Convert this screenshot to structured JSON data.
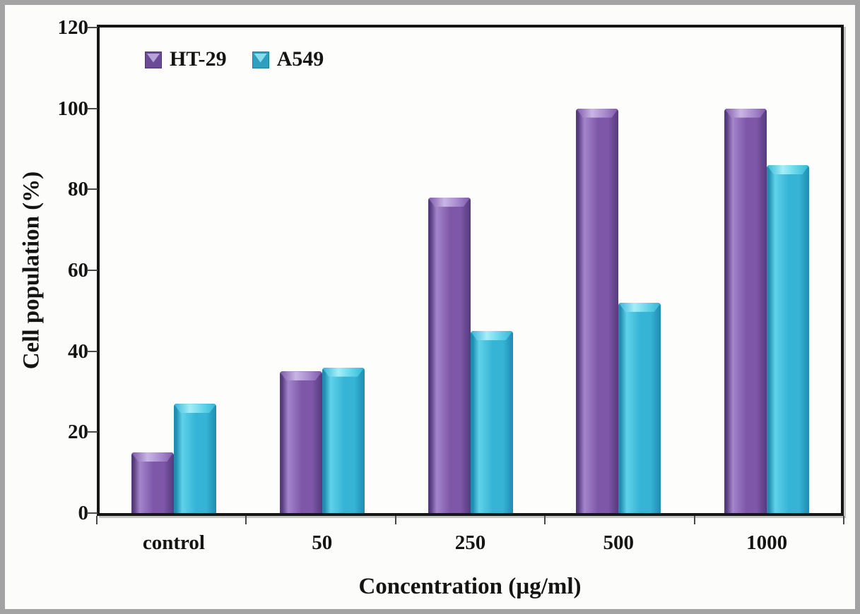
{
  "figure": {
    "background": "#fcfcfa",
    "frame_color": "#a3a3a3",
    "plot_border_color": "#161616"
  },
  "chart_data": {
    "type": "bar",
    "categories": [
      "control",
      "50",
      "250",
      "500",
      "1000"
    ],
    "series": [
      {
        "name": "HT-29",
        "color": "#7e57a8",
        "color_dark": "#553a7e",
        "color_light": "#a385cb",
        "color_highlight": "#c9b6e4",
        "values": [
          15,
          35,
          78,
          100,
          100
        ]
      },
      {
        "name": "A549",
        "color": "#35b4d6",
        "color_dark": "#1f8cb0",
        "color_light": "#5fd2e8",
        "color_highlight": "#a5eef8",
        "values": [
          27,
          36,
          45,
          52,
          86
        ]
      }
    ],
    "xlabel": "Concentration (µg/ml)",
    "ylabel": "Cell population (%)",
    "ylim": [
      0,
      120
    ],
    "yticks": [
      0,
      20,
      40,
      60,
      80,
      100,
      120
    ],
    "legend_position": "top-left-inside",
    "grid": false
  }
}
